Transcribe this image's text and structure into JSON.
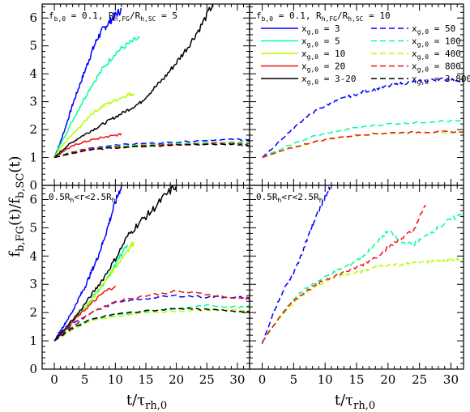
{
  "figure": {
    "ylabel": "f_{b,FG}(t)/f_{b,SC}(t)",
    "xlabel": "t/τ_{rh,0}",
    "xticks": [
      0,
      5,
      10,
      15,
      20,
      25,
      30
    ],
    "yticks": [
      0,
      1,
      2,
      3,
      4,
      5,
      6
    ],
    "xlim": [
      -2,
      32
    ],
    "ylim": [
      0,
      6.5
    ]
  },
  "colors": {
    "3": "#0000ff",
    "5": "#00ff99",
    "10": "#b4ff00",
    "20": "#ee1111",
    "3-20": "#000000",
    "50": "#0000ff",
    "100": "#00ff99",
    "400": "#b4ff00",
    "800": "#ee1111",
    "3-800": "#000000"
  },
  "legend": {
    "solid": [
      {
        "key": "3",
        "label": "x_{g,0} = 3"
      },
      {
        "key": "5",
        "label": "x_{g,0} = 5"
      },
      {
        "key": "10",
        "label": "x_{g,0} = 10"
      },
      {
        "key": "20",
        "label": "x_{g,0} = 20"
      },
      {
        "key": "3-20",
        "label": "x_{g,0} = 3-20"
      }
    ],
    "dashed": [
      {
        "key": "50",
        "label": "x_{g,0} = 50"
      },
      {
        "key": "100",
        "label": "x_{g,0} = 100"
      },
      {
        "key": "400",
        "label": "x_{g,0} = 400"
      },
      {
        "key": "800",
        "label": "x_{g,0} = 800"
      },
      {
        "key": "3-800",
        "label": "x_{g,0} = 3-800"
      }
    ]
  },
  "chart_data": [
    {
      "type": "line",
      "panel": "top-left",
      "annotation": "f_{b,0} = 0.1,  R_{h,FG}/R_{h,SC} = 5",
      "xlim": [
        -2,
        32
      ],
      "ylim": [
        0,
        6.5
      ],
      "series": [
        {
          "key": "3",
          "dash": false,
          "x": [
            0,
            1,
            2,
            3,
            4,
            5,
            6,
            7,
            8,
            9,
            10,
            11
          ],
          "y": [
            1.0,
            1.55,
            2.2,
            2.9,
            3.5,
            4.1,
            4.7,
            5.25,
            5.6,
            5.85,
            6.1,
            6.3
          ]
        },
        {
          "key": "5",
          "dash": false,
          "x": [
            0,
            2,
            4,
            6,
            8,
            10,
            12,
            14
          ],
          "y": [
            1.0,
            1.9,
            2.75,
            3.55,
            4.2,
            4.75,
            5.05,
            5.3
          ]
        },
        {
          "key": "10",
          "dash": false,
          "x": [
            0,
            2,
            4,
            6,
            8,
            10,
            12,
            13
          ],
          "y": [
            1.0,
            1.6,
            2.05,
            2.55,
            2.85,
            3.05,
            3.25,
            3.3
          ]
        },
        {
          "key": "20",
          "dash": false,
          "x": [
            0,
            2,
            4,
            6,
            8,
            10,
            11
          ],
          "y": [
            1.0,
            1.3,
            1.5,
            1.62,
            1.72,
            1.8,
            1.82
          ]
        },
        {
          "key": "3-20",
          "dash": false,
          "x": [
            0,
            2,
            4,
            6,
            8,
            10,
            12,
            14,
            16,
            18,
            20,
            22,
            24,
            26
          ],
          "y": [
            1.0,
            1.4,
            1.7,
            1.95,
            2.2,
            2.45,
            2.7,
            2.95,
            3.4,
            3.85,
            4.4,
            5.0,
            5.7,
            6.5
          ]
        },
        {
          "key": "50",
          "dash": true,
          "x": [
            0,
            5,
            10,
            15,
            20,
            25,
            30,
            32
          ],
          "y": [
            1.0,
            1.3,
            1.45,
            1.5,
            1.55,
            1.62,
            1.65,
            1.62
          ]
        },
        {
          "key": "100",
          "dash": true,
          "x": [
            0,
            5,
            10,
            15,
            20,
            25,
            30,
            32
          ],
          "y": [
            1.0,
            1.27,
            1.4,
            1.45,
            1.5,
            1.55,
            1.55,
            1.55
          ]
        },
        {
          "key": "400",
          "dash": true,
          "x": [
            0,
            5,
            10,
            15,
            20,
            25,
            30,
            32
          ],
          "y": [
            1.0,
            1.25,
            1.35,
            1.4,
            1.45,
            1.5,
            1.5,
            1.5
          ]
        },
        {
          "key": "800",
          "dash": true,
          "x": [
            0,
            5,
            10,
            15,
            20,
            25,
            30,
            32
          ],
          "y": [
            1.0,
            1.28,
            1.38,
            1.42,
            1.46,
            1.5,
            1.5,
            1.48
          ]
        },
        {
          "key": "3-800",
          "dash": true,
          "x": [
            0,
            5,
            10,
            15,
            20,
            25,
            30,
            32
          ],
          "y": [
            1.0,
            1.25,
            1.35,
            1.4,
            1.45,
            1.48,
            1.46,
            1.42
          ]
        }
      ]
    },
    {
      "type": "line",
      "panel": "top-right",
      "annotation": "f_{b,0} = 0.1,  R_{h,FG}/R_{h,SC} = 10",
      "xlim": [
        -2,
        32
      ],
      "ylim": [
        0,
        6.5
      ],
      "series": [
        {
          "key": "50",
          "dash": true,
          "x": [
            0,
            2,
            4,
            6,
            8,
            10,
            12,
            14,
            16,
            18,
            20,
            22,
            24,
            26,
            28,
            30,
            32
          ],
          "y": [
            1.0,
            1.4,
            1.85,
            2.25,
            2.6,
            2.85,
            3.05,
            3.2,
            3.35,
            3.45,
            3.55,
            3.65,
            3.7,
            3.75,
            3.8,
            3.8,
            3.75
          ]
        },
        {
          "key": "100",
          "dash": true,
          "x": [
            0,
            4,
            8,
            12,
            16,
            20,
            24,
            28,
            32
          ],
          "y": [
            1.0,
            1.4,
            1.75,
            1.95,
            2.1,
            2.2,
            2.25,
            2.3,
            2.3
          ]
        },
        {
          "key": "400",
          "dash": true,
          "x": [
            0,
            4,
            8,
            12,
            16,
            20,
            24,
            28,
            32
          ],
          "y": [
            1.0,
            1.3,
            1.55,
            1.7,
            1.8,
            1.85,
            1.9,
            1.9,
            1.9
          ]
        },
        {
          "key": "800",
          "dash": true,
          "x": [
            0,
            4,
            8,
            12,
            16,
            20,
            24,
            28,
            32
          ],
          "y": [
            1.0,
            1.3,
            1.55,
            1.72,
            1.82,
            1.88,
            1.9,
            1.92,
            1.92
          ]
        }
      ]
    },
    {
      "type": "line",
      "panel": "bottom-left",
      "annotation": "0.5R_h<r<2.5R_h",
      "xlim": [
        -2,
        32
      ],
      "ylim": [
        0,
        6.5
      ],
      "series": [
        {
          "key": "3",
          "dash": false,
          "x": [
            0,
            1,
            2,
            3,
            4,
            5,
            6,
            7,
            8,
            9,
            10,
            11
          ],
          "y": [
            1.0,
            1.35,
            1.7,
            2.05,
            2.5,
            2.9,
            3.4,
            3.9,
            4.5,
            5.2,
            5.9,
            6.5
          ]
        },
        {
          "key": "5",
          "dash": false,
          "x": [
            0,
            2,
            4,
            6,
            8,
            10,
            12
          ],
          "y": [
            1.0,
            1.45,
            1.95,
            2.45,
            3.0,
            3.7,
            4.4
          ]
        },
        {
          "key": "10",
          "dash": false,
          "x": [
            0,
            2,
            4,
            6,
            8,
            10,
            12,
            13
          ],
          "y": [
            1.0,
            1.4,
            1.9,
            2.4,
            3.0,
            3.6,
            4.2,
            4.5
          ]
        },
        {
          "key": "20",
          "dash": false,
          "x": [
            0,
            2,
            4,
            6,
            8,
            10
          ],
          "y": [
            1.0,
            1.45,
            1.9,
            2.3,
            2.7,
            2.95
          ]
        },
        {
          "key": "3-20",
          "dash": false,
          "x": [
            0,
            2,
            4,
            6,
            8,
            10,
            12,
            14,
            16,
            18,
            20
          ],
          "y": [
            1.0,
            1.5,
            2.0,
            2.6,
            3.2,
            3.9,
            4.7,
            5.2,
            5.6,
            6.1,
            6.5
          ]
        },
        {
          "key": "50",
          "dash": true,
          "x": [
            0,
            3,
            6,
            10,
            15,
            20,
            25,
            30,
            32
          ],
          "y": [
            1.0,
            1.6,
            2.0,
            2.35,
            2.5,
            2.6,
            2.55,
            2.55,
            2.5
          ]
        },
        {
          "key": "100",
          "dash": true,
          "x": [
            0,
            3,
            6,
            10,
            15,
            20,
            25,
            30,
            32
          ],
          "y": [
            1.0,
            1.5,
            1.75,
            1.9,
            2.05,
            2.15,
            2.25,
            2.2,
            2.25
          ]
        },
        {
          "key": "400",
          "dash": true,
          "x": [
            0,
            3,
            6,
            10,
            15,
            20,
            25,
            30,
            32
          ],
          "y": [
            1.0,
            1.4,
            1.7,
            1.85,
            2.0,
            2.05,
            2.1,
            2.1,
            2.05
          ]
        },
        {
          "key": "800",
          "dash": true,
          "x": [
            0,
            3,
            6,
            10,
            15,
            20,
            25,
            30,
            32
          ],
          "y": [
            1.0,
            1.5,
            2.0,
            2.4,
            2.6,
            2.75,
            2.65,
            2.5,
            2.55
          ]
        },
        {
          "key": "3-800",
          "dash": true,
          "x": [
            0,
            3,
            6,
            10,
            15,
            20,
            25,
            30,
            32
          ],
          "y": [
            1.0,
            1.45,
            1.75,
            1.95,
            2.05,
            2.15,
            2.1,
            2.05,
            2.0
          ]
        }
      ]
    },
    {
      "type": "line",
      "panel": "bottom-right",
      "annotation": "0.5R_h<r<2.5R_h",
      "xlim": [
        -2,
        32
      ],
      "ylim": [
        0,
        6.5
      ],
      "series": [
        {
          "key": "50",
          "dash": true,
          "x": [
            0,
            1,
            2,
            3,
            4,
            5,
            6,
            7,
            8,
            9,
            10,
            11
          ],
          "y": [
            0.9,
            1.5,
            2.1,
            2.6,
            3.05,
            3.4,
            3.9,
            4.5,
            5.1,
            5.6,
            6.1,
            6.5
          ]
        },
        {
          "key": "100",
          "dash": true,
          "x": [
            0,
            2,
            4,
            6,
            8,
            10,
            12,
            14,
            16,
            18,
            20,
            22,
            24,
            26,
            28,
            30,
            32
          ],
          "y": [
            0.95,
            1.6,
            2.2,
            2.7,
            3.0,
            3.25,
            3.5,
            3.7,
            4.0,
            4.4,
            4.9,
            4.5,
            4.4,
            4.7,
            5.0,
            5.3,
            5.5
          ]
        },
        {
          "key": "400",
          "dash": true,
          "x": [
            0,
            2,
            4,
            6,
            8,
            10,
            12,
            14,
            16,
            18,
            20,
            22,
            24,
            26,
            28,
            30,
            32
          ],
          "y": [
            0.95,
            1.6,
            2.1,
            2.55,
            2.85,
            3.1,
            3.3,
            3.35,
            3.45,
            3.6,
            3.7,
            3.7,
            3.75,
            3.8,
            3.85,
            3.85,
            3.9
          ]
        },
        {
          "key": "800",
          "dash": true,
          "x": [
            0,
            2,
            4,
            6,
            8,
            10,
            12,
            14,
            16,
            18,
            20,
            22,
            24,
            26
          ],
          "y": [
            0.95,
            1.6,
            2.2,
            2.6,
            2.9,
            3.15,
            3.35,
            3.5,
            3.7,
            3.95,
            4.3,
            4.6,
            4.9,
            5.8
          ]
        }
      ]
    }
  ]
}
